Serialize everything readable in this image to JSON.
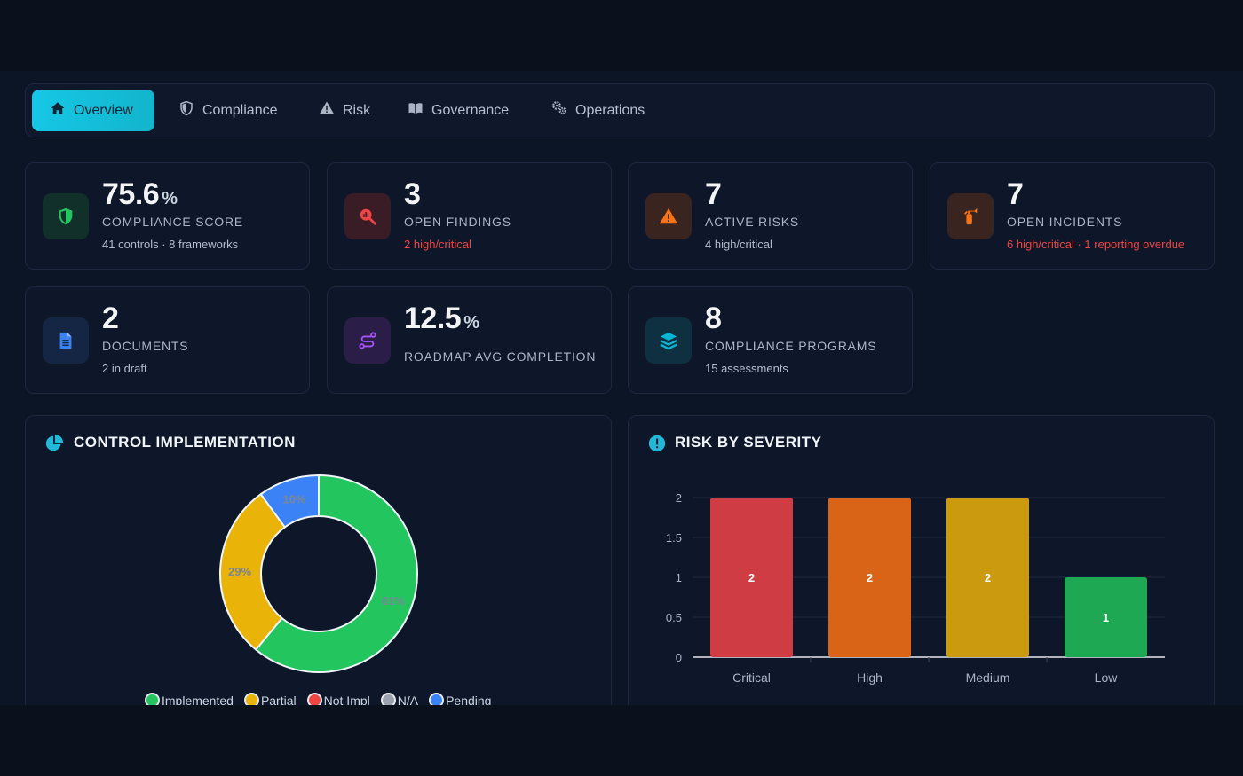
{
  "tabs": [
    {
      "label": "Overview",
      "icon": "home-icon",
      "active": true
    },
    {
      "label": "Compliance",
      "icon": "shield-icon",
      "active": false
    },
    {
      "label": "Risk",
      "icon": "warning-icon",
      "active": false
    },
    {
      "label": "Governance",
      "icon": "book-icon",
      "active": false
    },
    {
      "label": "Operations",
      "icon": "gears-icon",
      "active": false
    }
  ],
  "stats": [
    {
      "value": "75.6",
      "unit": "%",
      "label": "COMPLIANCE SCORE",
      "sub": "41 controls · 8 frameworks",
      "icon": "shield-check-icon",
      "accent": "#22c55e"
    },
    {
      "value": "3",
      "label": "OPEN FINDINGS",
      "sub": "2 high/critical",
      "icon": "search-chart-icon",
      "accent": "#ef4444"
    },
    {
      "value": "7",
      "label": "ACTIVE RISKS",
      "sub": "4 high/critical",
      "icon": "warning-icon",
      "accent": "#f97316"
    },
    {
      "value": "7",
      "label": "OPEN INCIDENTS",
      "sub": "6 high/critical · 1 reporting overdue",
      "icon": "fire-extinguisher-icon",
      "accent": "#f97316"
    },
    {
      "value": "2",
      "label": "DOCUMENTS",
      "sub": "2 in draft",
      "icon": "document-icon",
      "accent": "#3b82f6"
    },
    {
      "value": "12.5",
      "unit": "%",
      "label": "ROADMAP AVG COMPLETION",
      "icon": "route-icon",
      "accent": "#a855f7"
    },
    {
      "value": "8",
      "label": "COMPLIANCE PROGRAMS",
      "sub": "15 assessments",
      "icon": "layers-icon",
      "accent": "#06b6d4"
    }
  ],
  "control_panel": {
    "title": "CONTROL IMPLEMENTATION",
    "legend": [
      {
        "label": "Implemented",
        "color": "#22c55e"
      },
      {
        "label": "Partial",
        "color": "#eab308"
      },
      {
        "label": "Not Impl",
        "color": "#ef4444"
      },
      {
        "label": "N/A",
        "color": "#9ca3af"
      },
      {
        "label": "Pending",
        "color": "#3b82f6"
      }
    ]
  },
  "risk_panel": {
    "title": "RISK BY SEVERITY"
  },
  "chart_data": [
    {
      "type": "pie",
      "title": "CONTROL IMPLEMENTATION",
      "categories": [
        "Implemented",
        "Partial",
        "Not Impl",
        "N/A",
        "Pending"
      ],
      "values": [
        61,
        29,
        0,
        0,
        10
      ],
      "value_labels": [
        "61%",
        "29%",
        "",
        "",
        "10%"
      ],
      "colors": [
        "#22c55e",
        "#eab308",
        "#ef4444",
        "#9ca3af",
        "#3b82f6"
      ],
      "legend": "bottom"
    },
    {
      "type": "bar",
      "title": "RISK BY SEVERITY",
      "categories": [
        "Critical",
        "High",
        "Medium",
        "Low"
      ],
      "values": [
        2,
        2,
        2,
        1
      ],
      "colors": [
        "#d03c44",
        "#d96417",
        "#cc9a0f",
        "#1ea854"
      ],
      "yticks": [
        "0",
        "0.5",
        "1",
        "1.5",
        "2"
      ],
      "ylim": [
        0,
        2
      ],
      "grid": true
    }
  ]
}
